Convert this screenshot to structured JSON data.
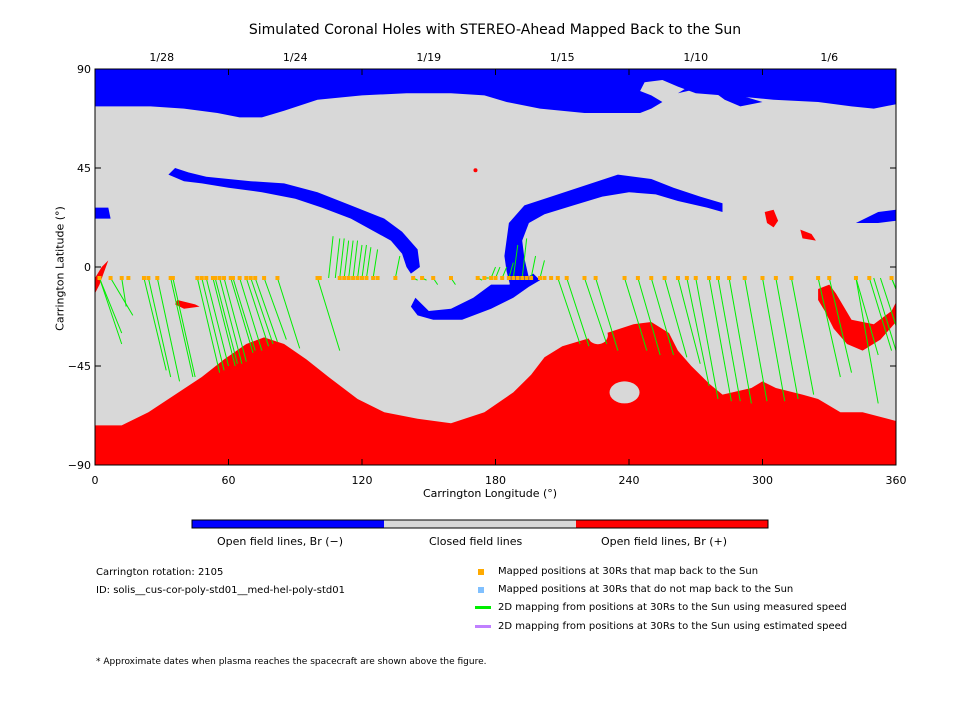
{
  "title": "Simulated Coronal Holes with STEREO-Ahead Mapped Back to the Sun",
  "chart_data": {
    "type": "map",
    "xlabel": "Carrington Longitude (°)",
    "ylabel": "Carrington Latitude (°)",
    "xlim": [
      0,
      360
    ],
    "ylim": [
      -90,
      90
    ],
    "x_ticks": [
      "0",
      "60",
      "120",
      "180",
      "240",
      "300",
      "360"
    ],
    "y_ticks": [
      "90",
      "45",
      "0",
      "−45",
      "−90"
    ],
    "top_date_ticks": [
      {
        "label": "1/28",
        "lon": 30
      },
      {
        "label": "1/24",
        "lon": 90
      },
      {
        "label": "1/19",
        "lon": 150
      },
      {
        "label": "1/15",
        "lon": 210
      },
      {
        "label": "1/10",
        "lon": 270
      },
      {
        "label": "1/6",
        "lon": 330
      }
    ],
    "colors": {
      "open_negative": "#0000ff",
      "closed": "#d8d8d8",
      "open_positive": "#ff0000",
      "mapped_point": "#ffaa00",
      "unmapped_point": "#80c0ff",
      "measured_line": "#00ee00",
      "estimated_line": "#c080ff"
    },
    "mapped_lat": -5,
    "mapped_lons": [
      2,
      7,
      12,
      15,
      22,
      24,
      28,
      34,
      35,
      46,
      48,
      50,
      53,
      54,
      56,
      58,
      61,
      62,
      65,
      68,
      70,
      72,
      76,
      82,
      100,
      101,
      110,
      112,
      114,
      116,
      118,
      120,
      122,
      125,
      127,
      135,
      143,
      147,
      152,
      160,
      172,
      175,
      178,
      180,
      183,
      186,
      188,
      190,
      192,
      194,
      196,
      200,
      202,
      205,
      208,
      212,
      220,
      225,
      238,
      244,
      250,
      256,
      262,
      266,
      270,
      276,
      280,
      285,
      292,
      300,
      306,
      313,
      325,
      330,
      342,
      348,
      358
    ],
    "mappings": [
      [
        2,
        -30
      ],
      [
        2,
        -35
      ],
      [
        7,
        -22
      ],
      [
        12,
        -18
      ],
      [
        22,
        -47
      ],
      [
        24,
        -50
      ],
      [
        28,
        -52
      ],
      [
        34,
        -50
      ],
      [
        35,
        -50
      ],
      [
        46,
        -48
      ],
      [
        48,
        -47
      ],
      [
        50,
        -45
      ],
      [
        53,
        -45
      ],
      [
        54,
        -44
      ],
      [
        56,
        -44
      ],
      [
        58,
        -43
      ],
      [
        61,
        -39
      ],
      [
        62,
        -38
      ],
      [
        65,
        -38
      ],
      [
        68,
        -36
      ],
      [
        70,
        -35
      ],
      [
        72,
        -34
      ],
      [
        76,
        -33
      ],
      [
        82,
        -37
      ],
      [
        100,
        -38
      ],
      [
        105,
        14
      ],
      [
        108,
        13
      ],
      [
        110,
        13
      ],
      [
        112,
        12
      ],
      [
        114,
        12
      ],
      [
        116,
        12
      ],
      [
        118,
        10
      ],
      [
        120,
        10
      ],
      [
        122,
        9
      ],
      [
        125,
        8
      ],
      [
        135,
        5
      ],
      [
        143,
        -6
      ],
      [
        147,
        -6
      ],
      [
        152,
        -8
      ],
      [
        160,
        -8
      ],
      [
        172,
        -6
      ],
      [
        175,
        -5
      ],
      [
        178,
        0
      ],
      [
        180,
        0
      ],
      [
        183,
        0
      ],
      [
        186,
        2
      ],
      [
        188,
        10
      ],
      [
        192,
        13
      ],
      [
        196,
        5
      ],
      [
        200,
        3
      ],
      [
        208,
        -35
      ],
      [
        212,
        -36
      ],
      [
        220,
        -35
      ],
      [
        225,
        -38
      ],
      [
        238,
        -38
      ],
      [
        244,
        -40
      ],
      [
        250,
        -40
      ],
      [
        256,
        -41
      ],
      [
        262,
        -44
      ],
      [
        266,
        -54
      ],
      [
        270,
        -60
      ],
      [
        276,
        -61
      ],
      [
        280,
        -61
      ],
      [
        285,
        -62
      ],
      [
        292,
        -61
      ],
      [
        300,
        -61
      ],
      [
        306,
        -60
      ],
      [
        313,
        -58
      ],
      [
        325,
        -50
      ],
      [
        330,
        -48
      ],
      [
        342,
        -40
      ],
      [
        348,
        -38
      ],
      [
        358,
        -10
      ],
      [
        358,
        -30
      ],
      [
        342,
        -62
      ],
      [
        350,
        -38
      ],
      [
        353,
        -36
      ]
    ]
  },
  "legend": {
    "items": [
      {
        "label": "Open field lines, Br (−)",
        "color": "#0000ff"
      },
      {
        "label": "Closed field lines",
        "color": "#d8d8d8"
      },
      {
        "label": "Open field lines, Br (+)",
        "color": "#ff0000"
      }
    ]
  },
  "info": {
    "rotation": "Carrington rotation: 2105",
    "id": "ID: solis__cus-cor-poly-std01__med-hel-poly-std01"
  },
  "key": {
    "mapped": "Mapped positions at 30Rs that map back to the Sun",
    "unmapped": "Mapped positions at 30Rs that do not map back to the Sun",
    "measured": "2D mapping from positions at 30Rs to the Sun using measured speed",
    "estimated": "2D mapping from positions at 30Rs to the Sun using estimated speed"
  },
  "footnote": "* Approximate dates when plasma reaches the spacecraft are shown above the figure."
}
